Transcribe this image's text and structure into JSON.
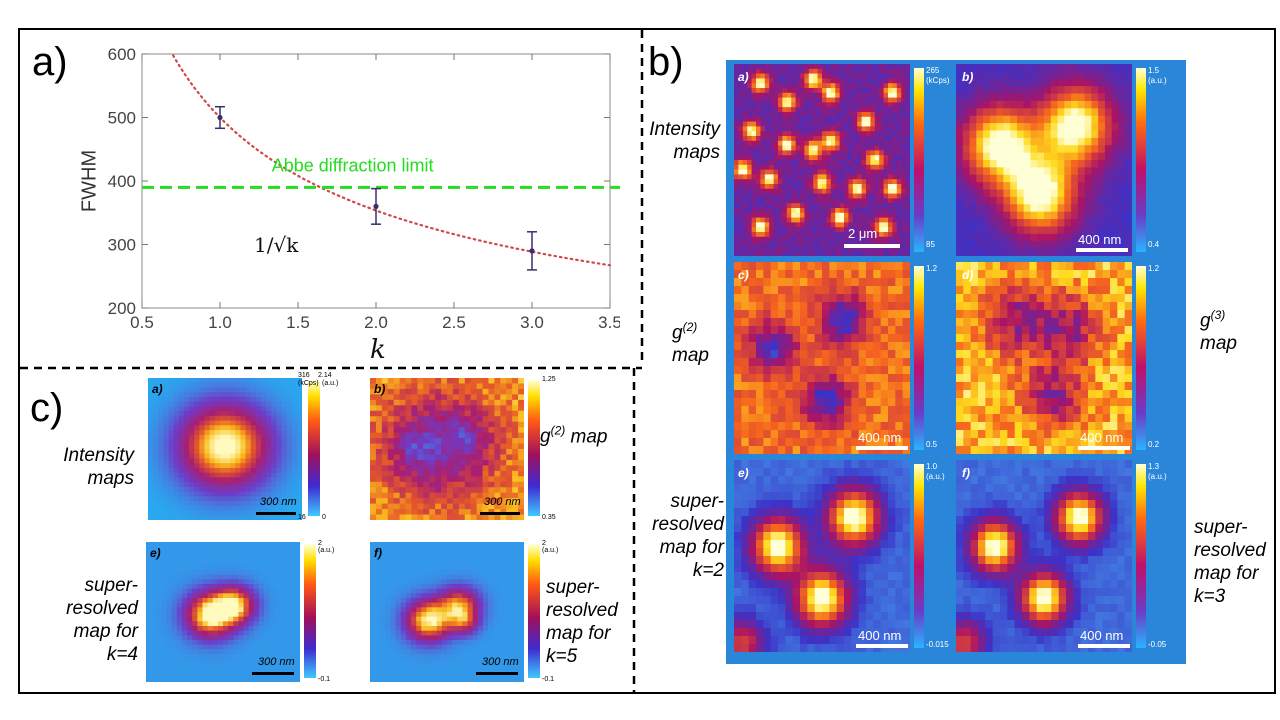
{
  "panels": {
    "a_label": "a)",
    "b_label": "b)",
    "c_label": "c)"
  },
  "chart_data": {
    "type": "scatter",
    "x": [
      1.0,
      2.0,
      3.0
    ],
    "y": [
      500,
      360,
      290
    ],
    "yerr": [
      17,
      28,
      30
    ],
    "xlabel": "k",
    "ylabel": "FWHM",
    "xlim": [
      0.5,
      3.5
    ],
    "ylim": [
      200,
      600
    ],
    "xticks": [
      "0.5",
      "1.0",
      "1.5",
      "2.0",
      "2.5",
      "3.0",
      "3.5"
    ],
    "yticks": [
      "200",
      "300",
      "400",
      "500",
      "600"
    ],
    "fit_label": "1/√k",
    "abbe_label": "Abbe diffraction limit",
    "abbe_value": 390,
    "fit_scale": 500,
    "colors": {
      "points": "#3a2f6a",
      "fit": "#d04848",
      "abbe": "#22dd22"
    }
  },
  "panel_b": {
    "row_labels": {
      "intensity": [
        "Intensity",
        "maps"
      ],
      "g2": "map",
      "g3": "map",
      "super_k2": [
        "super-",
        "resolved",
        "map for",
        "k=2"
      ],
      "super_k3": [
        "super-",
        "resolved",
        "map for",
        "k=3"
      ]
    },
    "sublabels": [
      "a)",
      "b)",
      "c)",
      "d)",
      "e)",
      "f)"
    ],
    "scalebars": [
      "2 μm",
      "400 nm",
      "400 nm",
      "400 nm",
      "400 nm",
      "400 nm"
    ],
    "cbar_top": [
      "265",
      "1.5",
      "1.2",
      "1.2",
      "1.0",
      "1.3"
    ],
    "cbar_unit": [
      "(kCps)",
      "(a.u.)",
      "",
      "",
      "(a.u.)",
      "(a.u.)"
    ],
    "cbar_bottom": [
      "85",
      "0.4",
      "0.5",
      "0.2",
      "-0.015",
      "-0.05"
    ]
  },
  "panel_c": {
    "row_labels": {
      "intensity": [
        "Intensity",
        "maps"
      ],
      "g2": "map",
      "super_k4": [
        "super-",
        "resolved",
        "map for",
        "k=4"
      ],
      "super_k5": [
        "super-",
        "resolved",
        "map for",
        "k=5"
      ]
    },
    "sublabels": [
      "a)",
      "b)",
      "e)",
      "f)"
    ],
    "scalebars": [
      "300 nm",
      "300 nm",
      "300 nm",
      "300 nm"
    ],
    "cbar_top_a": [
      "316",
      "2.14"
    ],
    "cbar_unit_a": [
      "(kCps)",
      "(a.u.)"
    ],
    "cbar_bottom_a": [
      "16",
      "0"
    ],
    "cbar_top_b": "1.25",
    "cbar_bottom_b": "0.35",
    "cbar_top_e": "2",
    "cbar_unit_e": "(a.u.)",
    "cbar_bottom_e": "-0.1",
    "cbar_top_f": "2",
    "cbar_unit_f": "(a.u.)",
    "cbar_bottom_f": "-0.1"
  }
}
